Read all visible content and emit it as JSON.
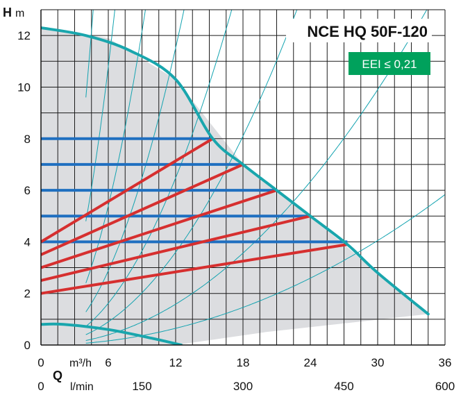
{
  "chart_data": {
    "type": "line",
    "title": "NCE HQ 50F-120",
    "badge": "EEI ≤ 0,21",
    "y_axis": {
      "symbol": "H",
      "unit": "m",
      "range": [
        0,
        13
      ],
      "ticks": [
        "0",
        "2",
        "4",
        "6",
        "8",
        "10",
        "12"
      ]
    },
    "x_axis": {
      "symbol": "Q",
      "unit_primary": "m³/h",
      "unit_secondary": "l/min",
      "range": [
        0,
        36
      ],
      "ticks_primary": [
        "0",
        "6",
        "12",
        "18",
        "24",
        "30",
        "36"
      ],
      "ticks_secondary": [
        "0",
        "150",
        "300",
        "450",
        "600"
      ]
    },
    "grid": true,
    "operating_area": [
      [
        0,
        12.3
      ],
      [
        6,
        11.9
      ],
      [
        12,
        10.3
      ],
      [
        18,
        7.0
      ],
      [
        24,
        5.0
      ],
      [
        30,
        2.8
      ],
      [
        34.5,
        1.2
      ],
      [
        20,
        0.5
      ],
      [
        12,
        0.0
      ],
      [
        0,
        0
      ]
    ],
    "max_curve": [
      [
        0,
        12.3
      ],
      [
        4,
        12.0
      ],
      [
        8,
        11.4
      ],
      [
        12,
        10.3
      ],
      [
        15.3,
        8.0
      ],
      [
        18,
        7.0
      ],
      [
        21,
        6.0
      ],
      [
        24,
        5.0
      ],
      [
        27.3,
        3.9
      ],
      [
        30,
        2.8
      ],
      [
        34.5,
        1.2
      ]
    ],
    "min_curve": [
      [
        0,
        0.8
      ],
      [
        2,
        0.8
      ],
      [
        6,
        0.6
      ],
      [
        10,
        0.25
      ],
      [
        12.5,
        0
      ]
    ],
    "constant_pressure": [
      {
        "h": 8,
        "q_max": 15.3
      },
      {
        "h": 7,
        "q_max": 18
      },
      {
        "h": 6,
        "q_max": 21
      },
      {
        "h": 5,
        "q_max": 24
      },
      {
        "h": 4,
        "q_max": 27.3
      }
    ],
    "proportional_pressure": [
      {
        "h0": 4.0,
        "end": [
          15.3,
          8.0
        ]
      },
      {
        "h0": 3.5,
        "end": [
          18,
          7.0
        ]
      },
      {
        "h0": 3.0,
        "end": [
          21,
          6.0
        ]
      },
      {
        "h0": 2.5,
        "end": [
          24,
          5.0
        ]
      },
      {
        "h0": 2.0,
        "end": [
          27.3,
          3.9
        ]
      }
    ],
    "system_curves": [
      {
        "k": 2.7,
        "start": 4
      },
      {
        "k": 1.2,
        "start": 4
      },
      {
        "k": 0.6,
        "start": 4
      },
      {
        "k": 0.3,
        "start": 4
      },
      {
        "k": 0.15,
        "start": 4
      },
      {
        "k": 0.08,
        "start": 4
      },
      {
        "k": 0.045,
        "start": 4
      },
      {
        "k": 0.025,
        "start": 4
      },
      {
        "k": 0.011,
        "start": 4
      },
      {
        "k": 0.0045,
        "start": 4
      }
    ]
  }
}
